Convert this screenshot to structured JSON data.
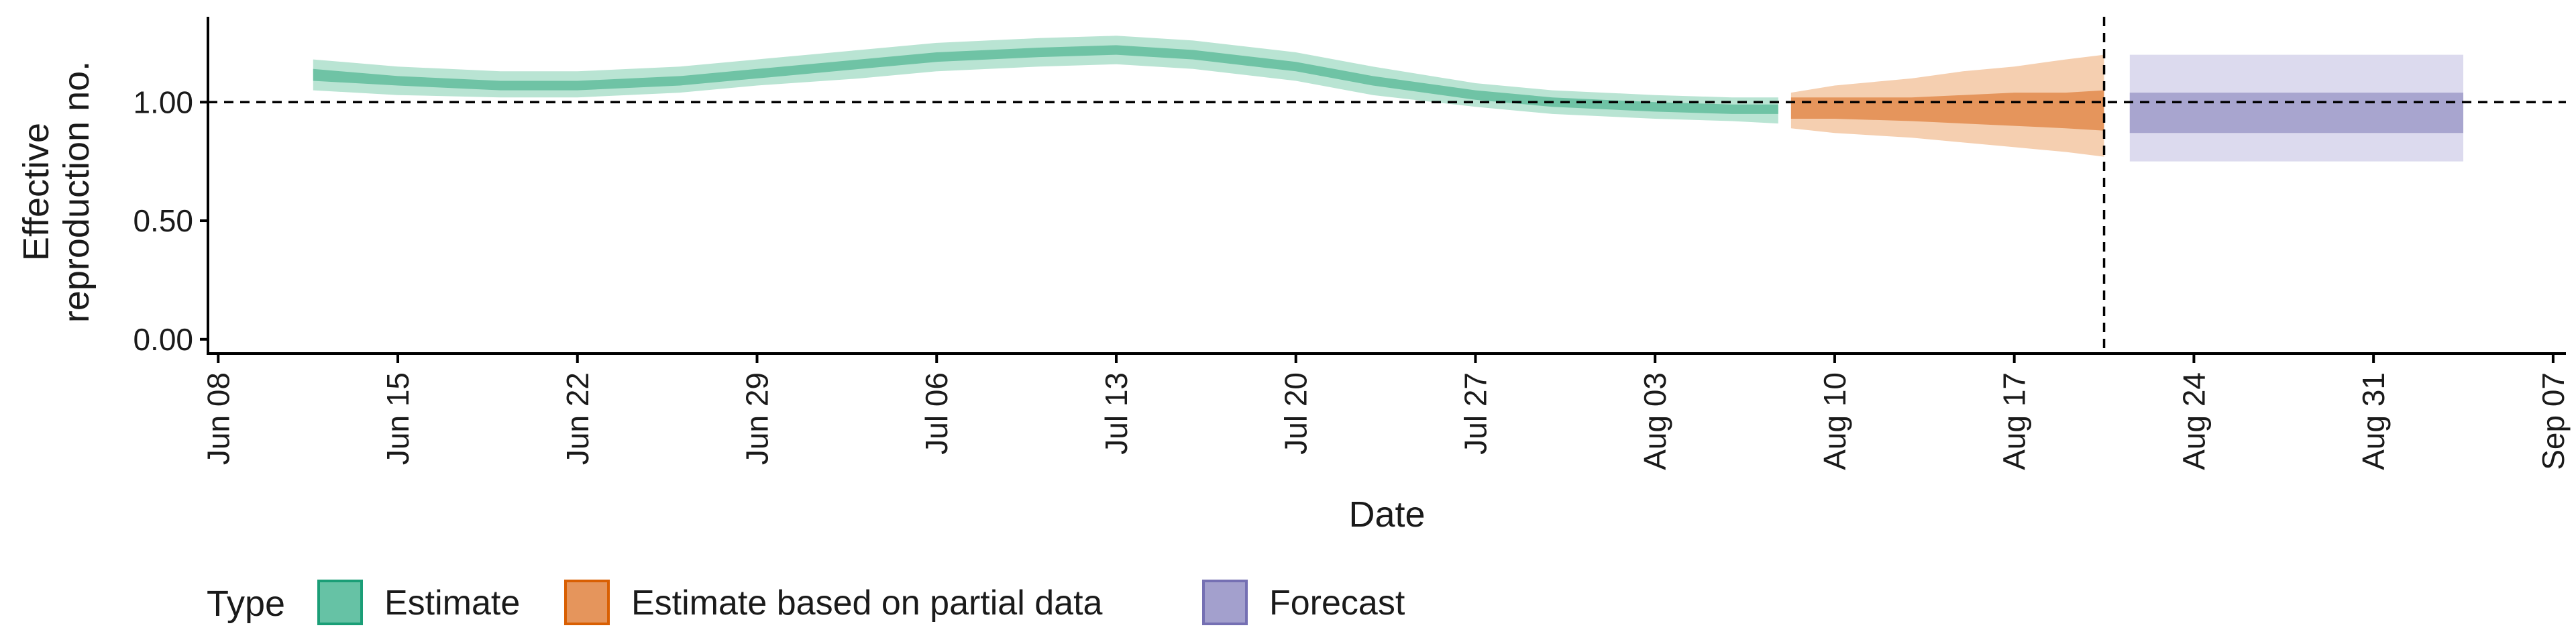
{
  "chart_data": {
    "type": "area",
    "xlabel": "Date",
    "ylabel_lines": [
      "Effective",
      "reproduction no."
    ],
    "x_tick_labels": [
      "Jun 08",
      "Jun 15",
      "Jun 22",
      "Jun 29",
      "Jul 06",
      "Jul 13",
      "Jul 20",
      "Jul 27",
      "Aug 03",
      "Aug 10",
      "Aug 17",
      "Aug 24",
      "Aug 31",
      "Sep 07"
    ],
    "y_tick_labels": [
      "0.00",
      "0.50",
      "1.00"
    ],
    "y_ticks": [
      0.0,
      0.5,
      1.0
    ],
    "ylim": [
      -0.06,
      1.36
    ],
    "xlim_day": [
      -0.4,
      91.5
    ],
    "reference_line_y": 1.0,
    "vertical_line_date": "Aug 21",
    "vertical_line_day": 73.5,
    "legend": {
      "title": "Type",
      "position": "bottom-left",
      "items": [
        {
          "label": "Estimate",
          "fill": "#66c2a5",
          "border": "#1b9e77"
        },
        {
          "label": "Estimate based on partial data",
          "fill": "#e5955c",
          "border": "#d95f02"
        },
        {
          "label": "Forecast",
          "fill": "#a3a0cd",
          "border": "#7570b3"
        }
      ]
    },
    "series": [
      {
        "name": "Estimate",
        "color_outer": "#b9e4d3",
        "color_inner": "#6fc3a5",
        "x_dates": [
          "Jun 12",
          "Jun 15",
          "Jun 19",
          "Jun 22",
          "Jun 26",
          "Jun 29",
          "Jul 03",
          "Jul 06",
          "Jul 10",
          "Jul 13",
          "Jul 16",
          "Jul 20",
          "Jul 23",
          "Jul 27",
          "Jul 30",
          "Aug 03",
          "Aug 06",
          "Aug 08"
        ],
        "x_day": [
          3.7,
          7,
          11,
          14,
          18,
          21,
          25,
          28,
          32,
          35,
          38,
          42,
          45,
          49,
          52,
          56,
          59,
          60.8
        ],
        "median": [
          1.12,
          1.09,
          1.07,
          1.07,
          1.09,
          1.12,
          1.16,
          1.19,
          1.21,
          1.22,
          1.2,
          1.15,
          1.09,
          1.03,
          1.0,
          0.98,
          0.97,
          0.97
        ],
        "lower_50": [
          1.09,
          1.07,
          1.05,
          1.05,
          1.07,
          1.1,
          1.14,
          1.17,
          1.19,
          1.2,
          1.18,
          1.13,
          1.07,
          1.01,
          0.98,
          0.96,
          0.95,
          0.95
        ],
        "upper_50": [
          1.14,
          1.11,
          1.09,
          1.09,
          1.11,
          1.14,
          1.18,
          1.21,
          1.23,
          1.24,
          1.22,
          1.17,
          1.11,
          1.05,
          1.02,
          1.0,
          0.99,
          0.99
        ],
        "lower_90": [
          1.05,
          1.03,
          1.02,
          1.02,
          1.04,
          1.07,
          1.1,
          1.13,
          1.15,
          1.16,
          1.14,
          1.09,
          1.03,
          0.98,
          0.95,
          0.93,
          0.92,
          0.91
        ],
        "upper_90": [
          1.18,
          1.15,
          1.13,
          1.13,
          1.15,
          1.18,
          1.22,
          1.25,
          1.27,
          1.28,
          1.26,
          1.21,
          1.15,
          1.08,
          1.05,
          1.03,
          1.02,
          1.02
        ]
      },
      {
        "name": "Estimate based on partial data",
        "color_outer": "#f5cfb0",
        "color_inner": "#e5955c",
        "x_dates": [
          "Aug 08",
          "Aug 10",
          "Aug 13",
          "Aug 15",
          "Aug 17",
          "Aug 19",
          "Aug 21"
        ],
        "x_day": [
          61.3,
          63,
          66,
          68,
          70,
          72,
          73.5
        ],
        "median": [
          0.98,
          0.98,
          0.98,
          0.98,
          0.98,
          0.97,
          0.96
        ],
        "lower_50": [
          0.93,
          0.93,
          0.92,
          0.91,
          0.9,
          0.89,
          0.88
        ],
        "upper_50": [
          1.02,
          1.02,
          1.02,
          1.03,
          1.04,
          1.04,
          1.05
        ],
        "lower_90": [
          0.89,
          0.87,
          0.85,
          0.83,
          0.81,
          0.79,
          0.77
        ],
        "upper_90": [
          1.04,
          1.07,
          1.1,
          1.13,
          1.15,
          1.18,
          1.2
        ]
      },
      {
        "name": "Forecast",
        "color_outer": "#dcdaee",
        "color_inner": "#a8a5cf",
        "x_dates": [
          "Aug 22",
          "Sep 04"
        ],
        "x_day": [
          74.5,
          87.5
        ],
        "median": [
          0.96,
          0.96
        ],
        "lower_50": [
          0.87,
          0.87
        ],
        "upper_50": [
          1.04,
          1.04
        ],
        "lower_90": [
          0.75,
          0.75
        ],
        "upper_90": [
          1.2,
          1.2
        ]
      }
    ]
  }
}
